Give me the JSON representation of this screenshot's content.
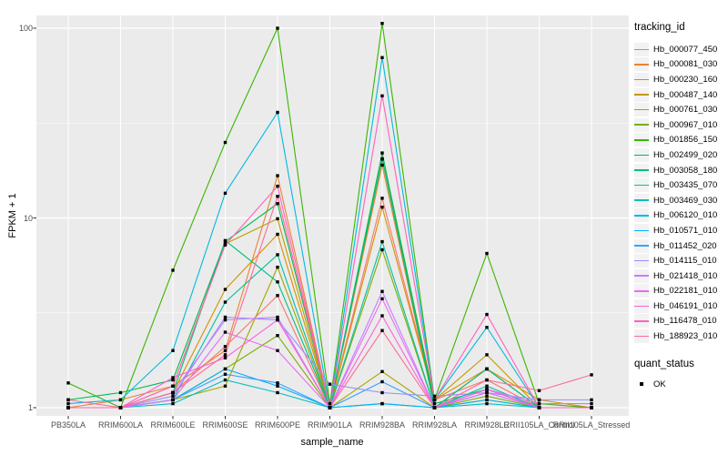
{
  "colors": {
    "background": "#FFFFFF",
    "panel": "#EBEBEB",
    "grid": "#FFFFFF",
    "tick_mark": "#333333",
    "tick_text": "#4D4D4D",
    "axis_title": "#000000",
    "legend_key_bg": "#F2F2F2",
    "point": "#000000"
  },
  "chart_data": {
    "type": "line",
    "title": "",
    "xlabel": "sample_name",
    "ylabel": "FPKM + 1",
    "y_scale": "log10",
    "ylim": [
      0.93,
      120
    ],
    "y_ticks": [
      1,
      10,
      100
    ],
    "y_tick_labels": [
      "1",
      "10",
      "100"
    ],
    "y_minor_ticks": [
      3.1623,
      31.623
    ],
    "grid": "on",
    "legend_position": "right",
    "point_marker": "black-square",
    "categories": [
      "PB350LA",
      "RRIM600LA",
      "RRIM600LE",
      "RRIM600SE",
      "RRIM600PE",
      "RRIM901LA",
      "RRIM928BA",
      "RRIM928LA",
      "RRIM928LE",
      "RRII105LA_Control",
      "RRII105LA_Stressed"
    ],
    "series": [
      {
        "name": "Hb_000077_450",
        "color": "#F8766D",
        "values": [
          1.0,
          1.0,
          1.2,
          2.1,
          3.9,
          1.0,
          12.7,
          1.1,
          1.4,
          1.0,
          1.0
        ]
      },
      {
        "name": "Hb_000081_030",
        "color": "#EA8331",
        "values": [
          1.0,
          1.1,
          1.3,
          2.0,
          16.7,
          1.0,
          19.0,
          1.0,
          1.6,
          1.0,
          1.0
        ]
      },
      {
        "name": "Hb_000230_160",
        "color": "#D89000",
        "values": [
          1.0,
          1.0,
          1.2,
          4.2,
          8.2,
          1.0,
          11.4,
          1.1,
          1.6,
          1.1,
          1.0
        ]
      },
      {
        "name": "Hb_000487_140",
        "color": "#C09B00",
        "values": [
          1.0,
          1.0,
          1.3,
          7.3,
          9.9,
          1.0,
          20.4,
          1.1,
          1.9,
          1.0,
          1.0
        ]
      },
      {
        "name": "Hb_000761_030",
        "color": "#A3A500",
        "values": [
          1.0,
          1.0,
          1.1,
          1.3,
          5.5,
          1.0,
          1.55,
          1.0,
          1.1,
          1.0,
          1.0
        ]
      },
      {
        "name": "Hb_000967_010",
        "color": "#7CAE00",
        "values": [
          1.0,
          1.0,
          1.1,
          1.6,
          2.4,
          1.0,
          6.8,
          1.0,
          1.15,
          1.0,
          1.0
        ]
      },
      {
        "name": "Hb_001856_150",
        "color": "#39B600",
        "values": [
          1.35,
          1.0,
          5.3,
          25.0,
          100.0,
          1.05,
          106.0,
          1.1,
          6.5,
          1.05,
          1.0
        ]
      },
      {
        "name": "Hb_002499_020",
        "color": "#00BB4E",
        "values": [
          1.1,
          1.2,
          1.4,
          7.5,
          11.9,
          1.0,
          22.0,
          1.05,
          1.25,
          1.0,
          1.0
        ]
      },
      {
        "name": "Hb_003058_180",
        "color": "#00BF7D",
        "values": [
          1.0,
          1.0,
          1.2,
          7.6,
          4.6,
          1.0,
          20.5,
          1.0,
          1.6,
          1.0,
          1.0
        ]
      },
      {
        "name": "Hb_003435_070",
        "color": "#00C1A3",
        "values": [
          1.0,
          1.0,
          1.1,
          3.6,
          6.4,
          1.0,
          7.5,
          1.0,
          1.3,
          1.0,
          1.0
        ]
      },
      {
        "name": "Hb_003469_030",
        "color": "#00BFC4",
        "values": [
          1.0,
          1.0,
          1.05,
          1.4,
          1.2,
          1.0,
          1.05,
          1.0,
          1.05,
          1.0,
          1.0
        ]
      },
      {
        "name": "Hb_006120_010",
        "color": "#00BAE0",
        "values": [
          1.05,
          1.1,
          2.0,
          13.5,
          36.0,
          1.0,
          70.0,
          1.1,
          2.65,
          1.0,
          1.0
        ]
      },
      {
        "name": "Hb_010571_010",
        "color": "#00B0F6",
        "values": [
          1.0,
          1.0,
          1.1,
          1.6,
          1.3,
          1.0,
          1.05,
          1.0,
          1.1,
          1.0,
          1.0
        ]
      },
      {
        "name": "Hb_011452_020",
        "color": "#35A2FF",
        "values": [
          1.0,
          1.0,
          1.1,
          1.5,
          1.35,
          1.0,
          1.37,
          1.0,
          1.2,
          1.0,
          1.0
        ]
      },
      {
        "name": "Hb_014115_010",
        "color": "#9590FF",
        "values": [
          1.0,
          1.0,
          1.15,
          3.0,
          2.9,
          1.33,
          1.2,
          1.15,
          1.2,
          1.1,
          1.1
        ]
      },
      {
        "name": "Hb_021418_010",
        "color": "#C77CFF",
        "values": [
          1.0,
          1.0,
          1.2,
          2.9,
          3.0,
          1.0,
          4.1,
          1.0,
          1.25,
          1.05,
          1.05
        ]
      },
      {
        "name": "Hb_022181_010",
        "color": "#E76BF3",
        "values": [
          1.0,
          1.0,
          1.1,
          2.5,
          2.0,
          1.0,
          3.75,
          1.0,
          1.2,
          1.0,
          1.0
        ]
      },
      {
        "name": "Hb_046191_010",
        "color": "#FA62DB",
        "values": [
          1.0,
          1.0,
          1.44,
          1.83,
          2.9,
          1.0,
          3.05,
          1.0,
          1.25,
          1.0,
          1.0
        ]
      },
      {
        "name": "Hb_116478_010",
        "color": "#FF62BC",
        "values": [
          1.0,
          1.0,
          1.3,
          7.2,
          14.7,
          1.0,
          44.0,
          1.1,
          3.1,
          1.0,
          1.0
        ]
      },
      {
        "name": "Hb_188923_010",
        "color": "#FF6A98",
        "values": [
          1.1,
          1.0,
          1.2,
          1.9,
          13.0,
          1.0,
          2.55,
          1.0,
          1.4,
          1.23,
          1.49
        ]
      }
    ],
    "legend": {
      "tracking_title": "tracking_id",
      "quant_title": "quant_status",
      "quant_items": [
        "OK"
      ]
    }
  }
}
